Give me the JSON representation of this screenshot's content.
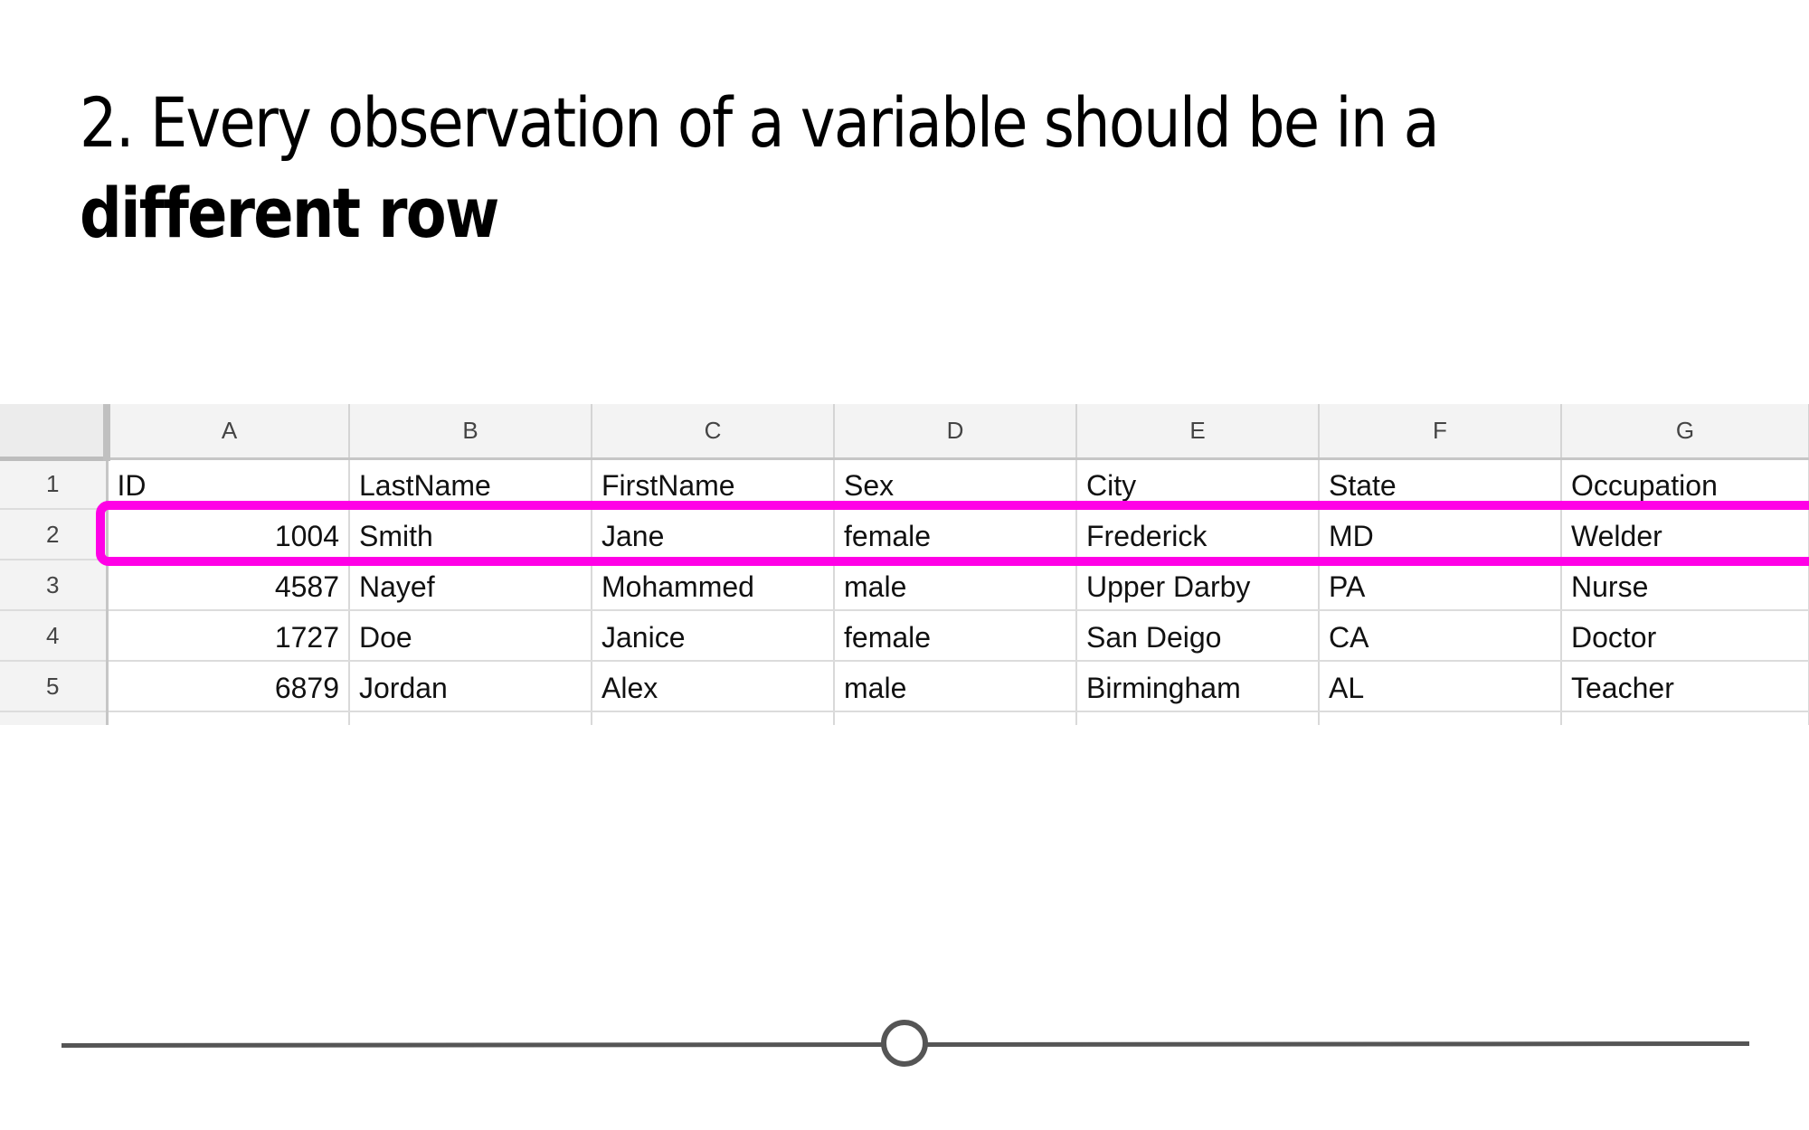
{
  "slide": {
    "title_line1": "2. Every observation of a variable should be in a",
    "title_line2": "different row"
  },
  "spreadsheet": {
    "column_letters": [
      "A",
      "B",
      "C",
      "D",
      "E",
      "F",
      "G"
    ],
    "row_numbers": [
      "1",
      "2",
      "3",
      "4",
      "5"
    ],
    "header": [
      "ID",
      "LastName",
      "FirstName",
      "Sex",
      "City",
      "State",
      "Occupation"
    ],
    "rows": [
      [
        "1004",
        "Smith",
        "Jane",
        "female",
        "Frederick",
        "MD",
        "Welder"
      ],
      [
        "4587",
        "Nayef",
        "Mohammed",
        "male",
        "Upper Darby",
        "PA",
        "Nurse"
      ],
      [
        "1727",
        "Doe",
        "Janice",
        "female",
        "San Deigo",
        "CA",
        "Doctor"
      ],
      [
        "6879",
        "Jordan",
        "Alex",
        "male",
        "Birmingham",
        "AL",
        "Teacher"
      ]
    ],
    "highlighted_row": "2",
    "highlight_color": "#ff00e6"
  },
  "player": {
    "progress": 0.5,
    "track_color": "#555555"
  }
}
